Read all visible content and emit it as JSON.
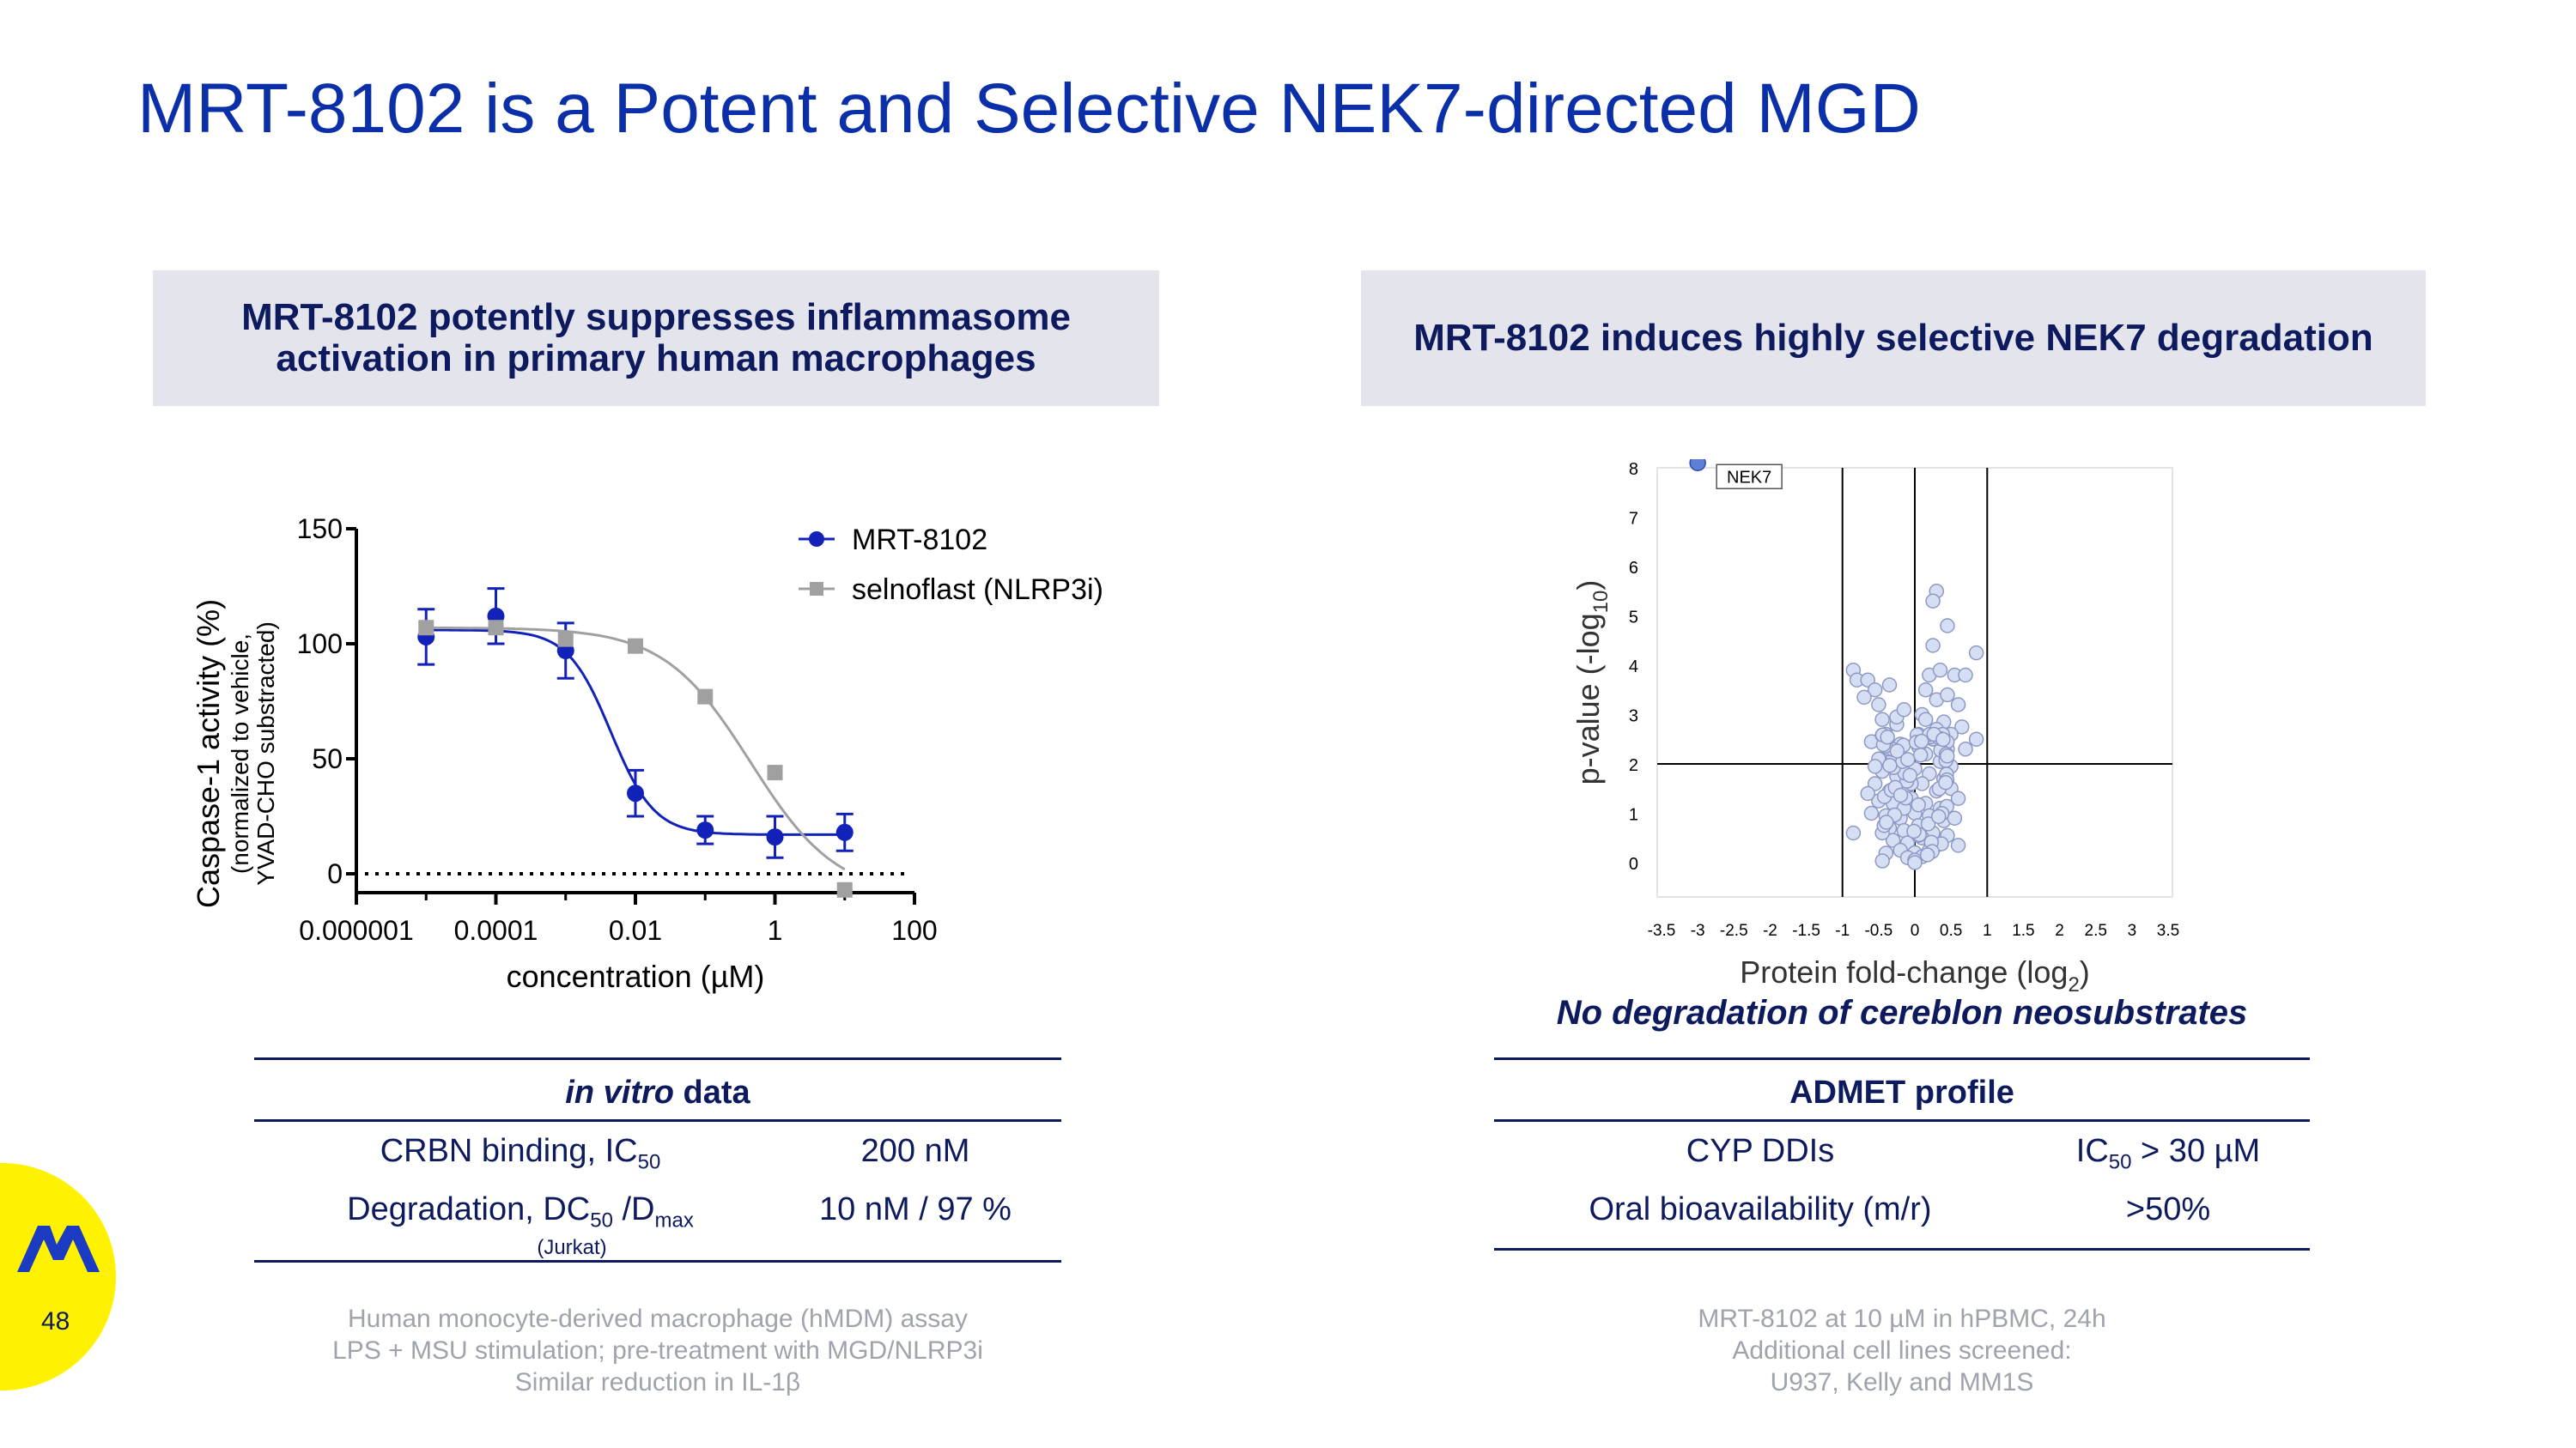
{
  "title": "MRT-8102 is a Potent and Selective NEK7-directed MGD",
  "left_panel": {
    "heading_line1": "MRT-8102 potently suppresses inflammasome",
    "heading_line2": "activation in primary human macrophages",
    "table": {
      "header_italic": "in vitro",
      "header_rest": " data",
      "rows": [
        {
          "label": "CRBN binding, IC",
          "sub": "50",
          "label_tail": "",
          "sub2": "",
          "value": "200 nM"
        },
        {
          "label": "Degradation, DC",
          "sub": "50",
          "label_tail": " /D",
          "sub2": "max",
          "value": "10 nM / 97 %"
        }
      ],
      "row_note": "(Jurkat)"
    },
    "footnotes": [
      "Human monocyte-derived macrophage (hMDM) assay",
      "LPS + MSU stimulation; pre-treatment with MGD/NLRP3i",
      "Similar reduction in IL-1β"
    ]
  },
  "right_panel": {
    "heading": "MRT-8102 induces highly selective NEK7 degradation",
    "caption": "No degradation of cereblon neosubstrates",
    "table": {
      "header": "ADMET profile",
      "rows": [
        {
          "label": "CYP DDIs",
          "value_pre": "IC",
          "value_sub": "50",
          "value_post": " > 30 µM"
        },
        {
          "label": "Oral bioavailability (m/r)",
          "value_pre": ">50%",
          "value_sub": "",
          "value_post": ""
        }
      ]
    },
    "footnotes": [
      "MRT-8102 at 10 µM in hPBMC, 24h",
      "Additional cell lines screened:",
      "U937, Kelly and MM1S"
    ]
  },
  "page_number": "48",
  "colors": {
    "title": "#0a2fa8",
    "navy": "#0d1a5e",
    "mrt": "#1222b8",
    "selno": "#a0a0a0",
    "volcano_point": "#d6def4",
    "nek7_point": "#5f7fd6",
    "logo_bg": "#fff200",
    "logo_mark": "#1a3bc2"
  },
  "chart_data": [
    {
      "type": "line",
      "title": "",
      "xlabel": "concentration (µM)",
      "ylabel": "Caspase-1 activity (%)",
      "ylabel_sub1": "(normalized to vehicle,",
      "ylabel_sub2": "YVAD-CHO substracted)",
      "x_scale": "log",
      "xlim": [
        1e-06,
        100
      ],
      "ylim": [
        -10,
        150
      ],
      "x_ticks": [
        "0.000001",
        "0.0001",
        "0.01",
        "1",
        "100"
      ],
      "y_ticks": [
        "0",
        "50",
        "100",
        "150"
      ],
      "reference_line_y": 0,
      "legend": "top-right",
      "series": [
        {
          "name": "MRT-8102",
          "marker": "circle",
          "points": [
            {
              "x": 1e-05,
              "y": 103,
              "err": 12
            },
            {
              "x": 0.0001,
              "y": 112,
              "err": 12
            },
            {
              "x": 0.001,
              "y": 97,
              "err": 12
            },
            {
              "x": 0.01,
              "y": 35,
              "err": 10
            },
            {
              "x": 0.1,
              "y": 19,
              "err": 6
            },
            {
              "x": 1,
              "y": 16,
              "err": 9
            },
            {
              "x": 10,
              "y": 18,
              "err": 8
            }
          ],
          "fit": {
            "top": 106,
            "bottom": 17,
            "logIC50": -2.35,
            "hill": 1.4
          }
        },
        {
          "name": "selnoflast (NLRP3i)",
          "marker": "square",
          "points": [
            {
              "x": 1e-05,
              "y": 107,
              "err": 0
            },
            {
              "x": 0.0001,
              "y": 107,
              "err": 0
            },
            {
              "x": 0.001,
              "y": 102,
              "err": 0
            },
            {
              "x": 0.01,
              "y": 99,
              "err": 0
            },
            {
              "x": 0.1,
              "y": 77,
              "err": 0
            },
            {
              "x": 1,
              "y": 44,
              "err": 0
            },
            {
              "x": 10,
              "y": -7,
              "err": 0
            }
          ],
          "fit": {
            "top": 107,
            "bottom": -10,
            "logIC50": -0.35,
            "hill": 0.7
          }
        }
      ]
    },
    {
      "type": "scatter",
      "title": "",
      "xlabel": "Protein fold-change (log",
      "xlabel_sub": "2",
      "ylabel": "p-value (-log",
      "ylabel_sub": "10",
      "xlim": [
        -3.5,
        3.5
      ],
      "ylim": [
        0,
        8
      ],
      "x_ticks": [
        "-3.5",
        "-3",
        "-2.5",
        "-2",
        "-1.5",
        "-1",
        "-0.5",
        "0",
        "0.5",
        "1",
        "1.5",
        "2",
        "2.5",
        "3",
        "3.5"
      ],
      "y_ticks": [
        "0",
        "1",
        "2",
        "3",
        "4",
        "5",
        "6",
        "7",
        "8"
      ],
      "threshold_lines": {
        "x": [
          -1,
          0,
          1
        ],
        "y": [
          2
        ]
      },
      "labeled_point": {
        "name": "NEK7",
        "x": -3.0,
        "y": 8.1
      },
      "points": [
        [
          0.3,
          5.5
        ],
        [
          0.25,
          5.3
        ],
        [
          0.45,
          4.8
        ],
        [
          0.25,
          4.4
        ],
        [
          0.85,
          4.25
        ],
        [
          -0.85,
          3.9
        ],
        [
          -0.8,
          3.7
        ],
        [
          -0.65,
          3.7
        ],
        [
          -0.55,
          3.5
        ],
        [
          0.2,
          3.8
        ],
        [
          0.35,
          3.9
        ],
        [
          0.55,
          3.8
        ],
        [
          0.7,
          3.8
        ],
        [
          -0.7,
          3.35
        ],
        [
          -0.5,
          3.2
        ],
        [
          -0.35,
          3.6
        ],
        [
          0.15,
          3.5
        ],
        [
          0.3,
          3.3
        ],
        [
          0.45,
          3.4
        ],
        [
          0.6,
          3.2
        ],
        [
          -0.45,
          2.9
        ],
        [
          -0.25,
          2.8
        ],
        [
          0.1,
          3.0
        ],
        [
          0.4,
          2.85
        ],
        [
          0.65,
          2.75
        ],
        [
          0.85,
          2.5
        ],
        [
          0.7,
          2.3
        ],
        [
          -0.6,
          2.45
        ],
        [
          -0.4,
          2.6
        ],
        [
          -0.2,
          2.4
        ],
        [
          0.05,
          2.6
        ],
        [
          0.25,
          2.5
        ],
        [
          0.45,
          2.3
        ],
        [
          -0.5,
          2.1
        ],
        [
          -0.3,
          2.15
        ],
        [
          0.15,
          2.2
        ],
        [
          0.35,
          2.05
        ],
        [
          -0.45,
          1.85
        ],
        [
          -0.25,
          1.75
        ],
        [
          0.0,
          1.9
        ],
        [
          0.2,
          1.8
        ],
        [
          0.4,
          1.7
        ],
        [
          -0.55,
          1.6
        ],
        [
          -0.35,
          1.45
        ],
        [
          -0.1,
          1.55
        ],
        [
          0.1,
          1.6
        ],
        [
          0.3,
          1.45
        ],
        [
          0.5,
          1.5
        ],
        [
          -0.5,
          1.25
        ],
        [
          -0.3,
          1.2
        ],
        [
          -0.05,
          1.3
        ],
        [
          0.15,
          1.2
        ],
        [
          0.35,
          1.1
        ],
        [
          -0.4,
          0.95
        ],
        [
          -0.2,
          0.9
        ],
        [
          0.0,
          1.0
        ],
        [
          0.2,
          0.95
        ],
        [
          0.4,
          0.85
        ],
        [
          -0.35,
          0.7
        ],
        [
          -0.15,
          0.65
        ],
        [
          0.05,
          0.75
        ],
        [
          0.25,
          0.6
        ],
        [
          0.45,
          0.55
        ],
        [
          -0.3,
          0.45
        ],
        [
          -0.1,
          0.4
        ],
        [
          0.1,
          0.5
        ],
        [
          0.3,
          0.35
        ],
        [
          -0.2,
          0.25
        ],
        [
          0.0,
          0.2
        ],
        [
          0.2,
          0.25
        ],
        [
          -0.1,
          0.1
        ],
        [
          0.1,
          0.12
        ],
        [
          0.0,
          0.05
        ],
        [
          -0.85,
          0.6
        ],
        [
          0.6,
          0.35
        ],
        [
          -0.6,
          1.0
        ],
        [
          0.55,
          0.9
        ],
        [
          -0.65,
          1.4
        ],
        [
          0.6,
          1.3
        ],
        [
          -0.25,
          2.95
        ],
        [
          0.05,
          2.35
        ],
        [
          -0.15,
          1.1
        ],
        [
          0.05,
          0.55
        ],
        [
          -0.05,
          1.6
        ],
        [
          0.3,
          2.7
        ],
        [
          -0.35,
          2.3
        ],
        [
          0.5,
          2.6
        ],
        [
          -0.15,
          3.1
        ],
        [
          0.15,
          2.9
        ],
        [
          -0.55,
          1.95
        ],
        [
          0.5,
          1.95
        ]
      ]
    }
  ]
}
